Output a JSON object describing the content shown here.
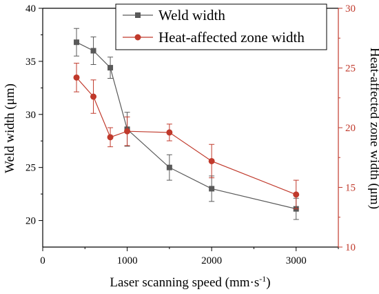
{
  "chart_data": {
    "type": "line",
    "x": [
      400,
      600,
      800,
      1000,
      1500,
      2000,
      3000
    ],
    "xlabel": "Laser scanning speed (mm·s",
    "xlabel_sup": "-1",
    "xlabel_end": ")",
    "xlim": [
      0,
      3500
    ],
    "x_ticks": [
      "0",
      "1000",
      "2000",
      "3000"
    ],
    "y_left": {
      "label": "Weld width (μm)",
      "lim": [
        17.5,
        40
      ],
      "ticks": [
        "20",
        "25",
        "30",
        "35",
        "40"
      ],
      "color": "#000000"
    },
    "y_right": {
      "label": "Heat-affected zone width (μm)",
      "lim": [
        10,
        30
      ],
      "ticks": [
        "10",
        "15",
        "20",
        "25",
        "30"
      ],
      "color": "#c0392b"
    },
    "grid": false,
    "legend_position": "top-right",
    "series": [
      {
        "name": "Weld width",
        "axis": "left",
        "color": "#595959",
        "marker": "square",
        "values": [
          36.8,
          36.0,
          34.4,
          28.6,
          25.0,
          23.0,
          21.1
        ],
        "errors": [
          1.3,
          1.3,
          1.0,
          1.6,
          1.2,
          1.2,
          1.0
        ]
      },
      {
        "name": "Heat-affected zone width",
        "axis": "right",
        "color": "#c0392b",
        "marker": "circle",
        "values": [
          24.2,
          22.6,
          19.2,
          19.7,
          19.6,
          17.2,
          14.4
        ],
        "errors": [
          1.2,
          1.4,
          0.8,
          1.2,
          0.7,
          1.4,
          1.2
        ]
      }
    ]
  }
}
